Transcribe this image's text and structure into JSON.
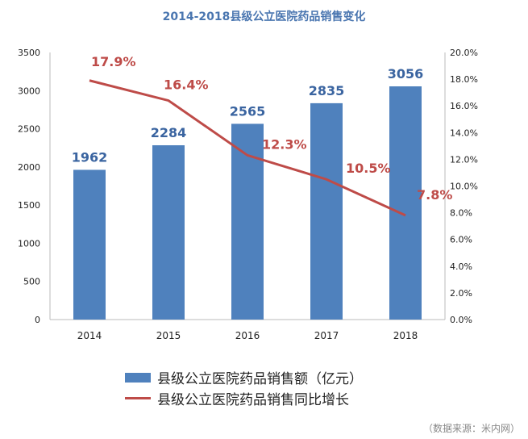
{
  "chart_data": {
    "type": "bar+line",
    "title": "2014-2018县级公立医院药品销售变化",
    "categories": [
      "2014",
      "2015",
      "2016",
      "2017",
      "2018"
    ],
    "series": [
      {
        "name": "县级公立医院药品销售额（亿元）",
        "type": "bar",
        "axis": "left",
        "values": [
          1962,
          2284,
          2565,
          2835,
          3056
        ],
        "labels": [
          "1962",
          "2284",
          "2565",
          "2835",
          "3056"
        ],
        "color": "#4f81bd"
      },
      {
        "name": "县级公立医院药品销售同比增长",
        "type": "line",
        "axis": "right",
        "values": [
          17.9,
          16.4,
          12.3,
          10.5,
          7.8
        ],
        "labels": [
          "17.9%",
          "16.4%",
          "12.3%",
          "10.5%",
          "7.8%"
        ],
        "color": "#be4b48"
      }
    ],
    "left_axis": {
      "ylim": [
        0,
        3500
      ],
      "ticks": [
        "0",
        "500",
        "1000",
        "1500",
        "2000",
        "2500",
        "3000",
        "3500"
      ]
    },
    "right_axis": {
      "ylim": [
        0,
        20
      ],
      "ticks": [
        "0.0%",
        "2.0%",
        "4.0%",
        "6.0%",
        "8.0%",
        "10.0%",
        "12.0%",
        "14.0%",
        "16.0%",
        "18.0%",
        "20.0%"
      ]
    },
    "legend": "bottom",
    "grid": false
  },
  "source": "（数据来源：米内网）"
}
